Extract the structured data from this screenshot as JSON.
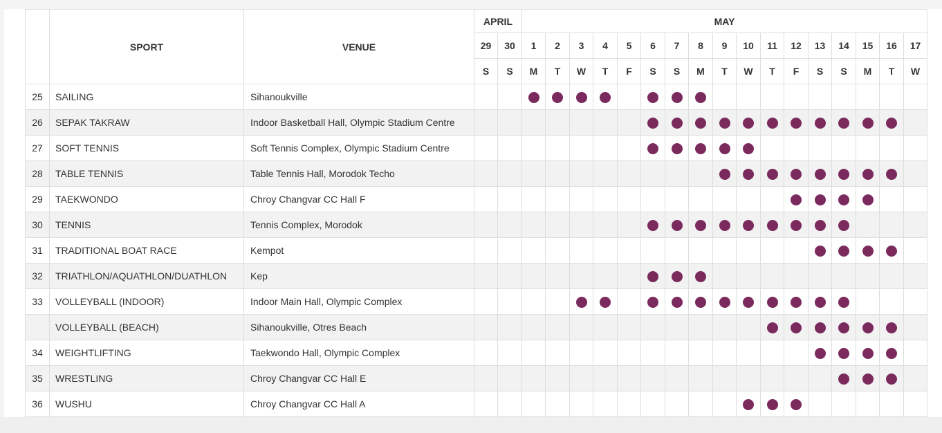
{
  "headers": {
    "sport": "SPORT",
    "venue": "VENUE",
    "months": [
      {
        "label": "APRIL",
        "span": 2
      },
      {
        "label": "MAY",
        "span": 17
      }
    ],
    "dates": [
      "29",
      "30",
      "1",
      "2",
      "3",
      "4",
      "5",
      "6",
      "7",
      "8",
      "9",
      "10",
      "11",
      "12",
      "13",
      "14",
      "15",
      "16",
      "17"
    ],
    "weekdays": [
      "S",
      "S",
      "M",
      "T",
      "W",
      "T",
      "F",
      "S",
      "S",
      "M",
      "T",
      "W",
      "T",
      "F",
      "S",
      "S",
      "M",
      "T",
      "W"
    ]
  },
  "dot_color": "#7b2a5e",
  "rows": [
    {
      "num": "25",
      "sport": "SAILING",
      "venue": "Sihanoukville",
      "days": [
        "1",
        "2",
        "3",
        "4",
        "6",
        "7",
        "8"
      ]
    },
    {
      "num": "26",
      "sport": "SEPAK TAKRAW",
      "venue": "Indoor Basketball Hall, Olympic Stadium Centre",
      "days": [
        "6",
        "7",
        "8",
        "9",
        "10",
        "11",
        "12",
        "13",
        "14",
        "15",
        "16"
      ]
    },
    {
      "num": "27",
      "sport": "SOFT TENNIS",
      "venue": "Soft Tennis Complex, Olympic Stadium Centre",
      "days": [
        "6",
        "7",
        "8",
        "9",
        "10"
      ]
    },
    {
      "num": "28",
      "sport": "TABLE TENNIS",
      "venue": "Table Tennis Hall, Morodok Techo",
      "days": [
        "9",
        "10",
        "11",
        "12",
        "13",
        "14",
        "15",
        "16"
      ]
    },
    {
      "num": "29",
      "sport": "TAEKWONDO",
      "venue": "Chroy Changvar CC Hall F",
      "days": [
        "12",
        "13",
        "14",
        "15"
      ]
    },
    {
      "num": "30",
      "sport": "TENNIS",
      "venue": "Tennis Complex, Morodok",
      "days": [
        "6",
        "7",
        "8",
        "9",
        "10",
        "11",
        "12",
        "13",
        "14"
      ]
    },
    {
      "num": "31",
      "sport": "TRADITIONAL BOAT RACE",
      "venue": "Kempot",
      "days": [
        "13",
        "14",
        "15",
        "16"
      ]
    },
    {
      "num": "32",
      "sport": "TRIATHLON/AQUATHLON/DUATHLON",
      "venue": "Kep",
      "days": [
        "6",
        "7",
        "8"
      ]
    },
    {
      "num": "33",
      "sport": "VOLLEYBALL (INDOOR)",
      "venue": "Indoor Main Hall, Olympic Complex",
      "days": [
        "3",
        "4",
        "6",
        "7",
        "8",
        "9",
        "10",
        "11",
        "12",
        "13",
        "14"
      ]
    },
    {
      "num": "",
      "sport": "VOLLEYBALL (BEACH)",
      "venue": "Sihanoukville, Otres Beach",
      "days": [
        "11",
        "12",
        "13",
        "14",
        "15",
        "16"
      ]
    },
    {
      "num": "34",
      "sport": "WEIGHTLIFTING",
      "venue": "Taekwondo Hall, Olympic Complex",
      "days": [
        "13",
        "14",
        "15",
        "16"
      ]
    },
    {
      "num": "35",
      "sport": "WRESTLING",
      "venue": "Chroy Changvar CC Hall E",
      "days": [
        "14",
        "15",
        "16"
      ]
    },
    {
      "num": "36",
      "sport": "WUSHU",
      "venue": "Chroy Changvar CC Hall A",
      "days": [
        "10",
        "11",
        "12"
      ]
    }
  ]
}
